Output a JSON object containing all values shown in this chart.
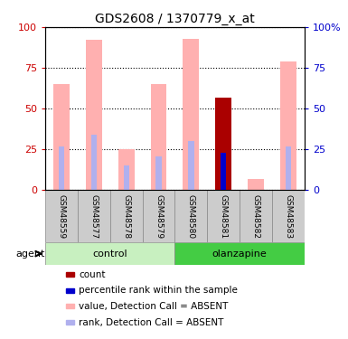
{
  "title": "GDS2608 / 1370779_x_at",
  "samples": [
    "GSM48559",
    "GSM48577",
    "GSM48578",
    "GSM48579",
    "GSM48580",
    "GSM48581",
    "GSM48582",
    "GSM48583"
  ],
  "pink_bar_heights": [
    65,
    92,
    25,
    65,
    93,
    0,
    7,
    79
  ],
  "light_blue_bar_heights": [
    27,
    34,
    15,
    21,
    30,
    0,
    0,
    27
  ],
  "dark_red_bar_heights": [
    0,
    0,
    0,
    0,
    0,
    57,
    0,
    0
  ],
  "blue_square_heights": [
    0,
    0,
    0,
    0,
    0,
    23,
    0,
    0
  ],
  "groups": [
    {
      "label": "control",
      "start": 0,
      "end": 4,
      "color": "#c8f0c0"
    },
    {
      "label": "olanzapine",
      "start": 4,
      "end": 8,
      "color": "#44cc44"
    }
  ],
  "ylim": [
    0,
    100
  ],
  "bar_width": 0.5,
  "pink_color": "#ffb0b0",
  "light_blue_color": "#b0b0ee",
  "dark_red_color": "#aa0000",
  "blue_color": "#0000cc",
  "left_axis_color": "#cc0000",
  "right_axis_color": "#0000cc",
  "legend_items": [
    {
      "color": "#aa0000",
      "label": "count"
    },
    {
      "color": "#0000cc",
      "label": "percentile rank within the sample"
    },
    {
      "color": "#ffb0b0",
      "label": "value, Detection Call = ABSENT"
    },
    {
      "color": "#b0b0ee",
      "label": "rank, Detection Call = ABSENT"
    }
  ]
}
